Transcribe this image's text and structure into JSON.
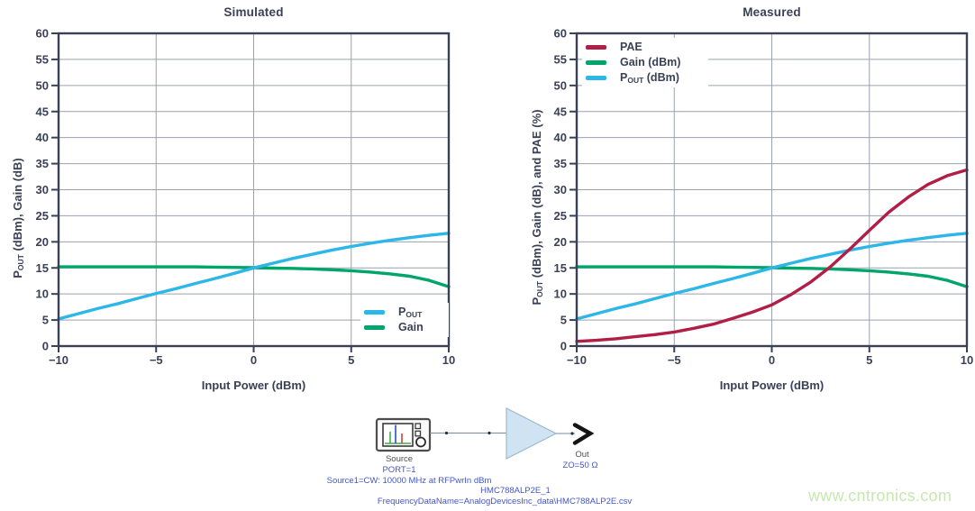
{
  "colors": {
    "axis": "#3a4156",
    "grid": "#9ba1ad",
    "pout": "#2cb7e8",
    "gain": "#00a569",
    "pae": "#b11e46",
    "schematic_blue": "#4456c7",
    "schematic_gray": "#4f4f4f",
    "amp_fill": "#cfe3f2",
    "amp_stroke": "#9cb9d2",
    "watermark_green": "#c8e7b2"
  },
  "chart_data": [
    {
      "type": "line",
      "title": "Simulated",
      "xlabel": "Input Power (dBm)",
      "ylabel": "POUT (dBm), Gain (dB)",
      "ylabel_parts": {
        "pre": "P",
        "sub": "OUT",
        "rest": " (dBm), Gain (dB)"
      },
      "xlim": [
        -10,
        10
      ],
      "ylim": [
        0,
        60
      ],
      "xticks": [
        -10,
        -5,
        0,
        5,
        10
      ],
      "yticks": [
        0,
        5,
        10,
        15,
        20,
        25,
        30,
        35,
        40,
        45,
        50,
        55,
        60
      ],
      "grid": true,
      "legend_position": "bottom-right",
      "x": [
        -10,
        -9,
        -8,
        -7,
        -6,
        -5,
        -4,
        -3,
        -2,
        -1,
        0,
        1,
        2,
        3,
        4,
        5,
        6,
        7,
        8,
        9,
        10
      ],
      "series": [
        {
          "name": "gain",
          "color_key": "gain",
          "legend": {
            "pre": "Gain",
            "sub": "",
            "rest": ""
          },
          "values": [
            15.2,
            15.2,
            15.2,
            15.2,
            15.2,
            15.2,
            15.2,
            15.2,
            15.15,
            15.1,
            15.05,
            14.95,
            14.9,
            14.8,
            14.65,
            14.45,
            14.2,
            13.85,
            13.4,
            12.6,
            11.4
          ]
        },
        {
          "name": "pout",
          "color_key": "pout",
          "legend": {
            "pre": "P",
            "sub": "OUT",
            "rest": ""
          },
          "values": [
            5.2,
            6.2,
            7.2,
            8.1,
            9.1,
            10.1,
            11.0,
            12.0,
            12.95,
            13.95,
            15.0,
            15.9,
            16.8,
            17.6,
            18.4,
            19.1,
            19.75,
            20.3,
            20.8,
            21.25,
            21.65
          ]
        }
      ]
    },
    {
      "type": "line",
      "title": "Measured",
      "xlabel": "Input Power (dBm)",
      "ylabel": "POUT (dBm), Gain (dB), and PAE (%)",
      "ylabel_parts": {
        "pre": "P",
        "sub": "OUT",
        "rest": " (dBm), Gain (dB), and PAE (%)"
      },
      "xlim": [
        -10,
        10
      ],
      "ylim": [
        0,
        60
      ],
      "xticks": [
        -10,
        -5,
        0,
        5,
        10
      ],
      "yticks": [
        0,
        5,
        10,
        15,
        20,
        25,
        30,
        35,
        40,
        45,
        50,
        55,
        60
      ],
      "grid": true,
      "legend_position": "top-left",
      "x": [
        -10,
        -9,
        -8,
        -7,
        -6,
        -5,
        -4,
        -3,
        -2,
        -1,
        0,
        1,
        2,
        3,
        4,
        5,
        6,
        7,
        8,
        9,
        10
      ],
      "series": [
        {
          "name": "gain",
          "color_key": "gain",
          "legend": {
            "pre": "Gain",
            "sub": "",
            "rest": " (dBm)"
          },
          "values": [
            15.2,
            15.2,
            15.2,
            15.2,
            15.2,
            15.2,
            15.2,
            15.2,
            15.15,
            15.1,
            15.05,
            14.95,
            14.9,
            14.8,
            14.65,
            14.45,
            14.2,
            13.85,
            13.4,
            12.6,
            11.4
          ]
        },
        {
          "name": "pout",
          "color_key": "pout",
          "legend": {
            "pre": "P",
            "sub": "OUT",
            "rest": " (dBm)"
          },
          "values": [
            5.2,
            6.2,
            7.2,
            8.1,
            9.1,
            10.1,
            11.0,
            12.0,
            12.95,
            13.95,
            15.0,
            15.9,
            16.8,
            17.6,
            18.4,
            19.1,
            19.75,
            20.3,
            20.8,
            21.25,
            21.65
          ]
        },
        {
          "name": "pae",
          "color_key": "pae",
          "legend": {
            "pre": "PAE",
            "sub": "",
            "rest": ""
          },
          "values": [
            0.9,
            1.1,
            1.4,
            1.8,
            2.2,
            2.7,
            3.4,
            4.2,
            5.3,
            6.5,
            7.9,
            9.9,
            12.3,
            15.2,
            18.6,
            22.2,
            25.7,
            28.6,
            31.0,
            32.7,
            33.8
          ]
        }
      ]
    }
  ],
  "schematic": {
    "source_label": "Source",
    "port_label": "PORT=1",
    "source_params": "Source1=CW: 10000 MHz at RFPwrIn dBm",
    "amp_name": "HMC788ALP2E_1",
    "amp_data": "FrequencyDataName=AnalogDevicesInc_data\\HMC788ALP2E.csv",
    "out_label": "Out",
    "out_impedance": "ZO=50 Ω"
  },
  "watermark": {
    "text": "www.cntronics.com"
  }
}
